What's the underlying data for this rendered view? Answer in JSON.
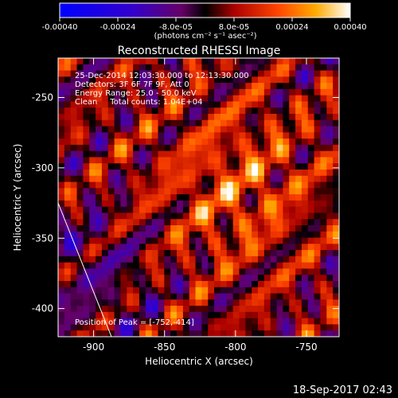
{
  "chart_data": {
    "type": "heatmap",
    "title": "Reconstructed RHESSI Image",
    "xlabel": "Heliocentric X (arcsec)",
    "ylabel": "Heliocentric Y (arcsec)",
    "xlim": [
      -925,
      -727
    ],
    "ylim": [
      -420,
      -222
    ],
    "xticks": [
      -900,
      -850,
      -800,
      -750
    ],
    "yticks": [
      -250,
      -300,
      -350,
      -400
    ],
    "colorbar": {
      "min": -0.0004,
      "max": 0.0004,
      "ticks": [
        "-0.00040",
        "-0.00024",
        "-8.0e-05",
        "8.0e-05",
        "0.00024",
        "0.00040"
      ],
      "unit_label": "(photons cm⁻² s⁻¹ asec⁻²)"
    },
    "annotations": [
      "25-Dec-2014 12:03:30.000 to 12:13:30.000",
      "Detectors: 3F 6F 7F 9F, Att 0",
      "Energy Range: 25.0 - 50.0 keV",
      "Clean     Total counts: 1.04E+04"
    ],
    "peak_label": "Position of Peak = [-752,-414]",
    "timestamp": "18-Sep-2017 02:43"
  }
}
